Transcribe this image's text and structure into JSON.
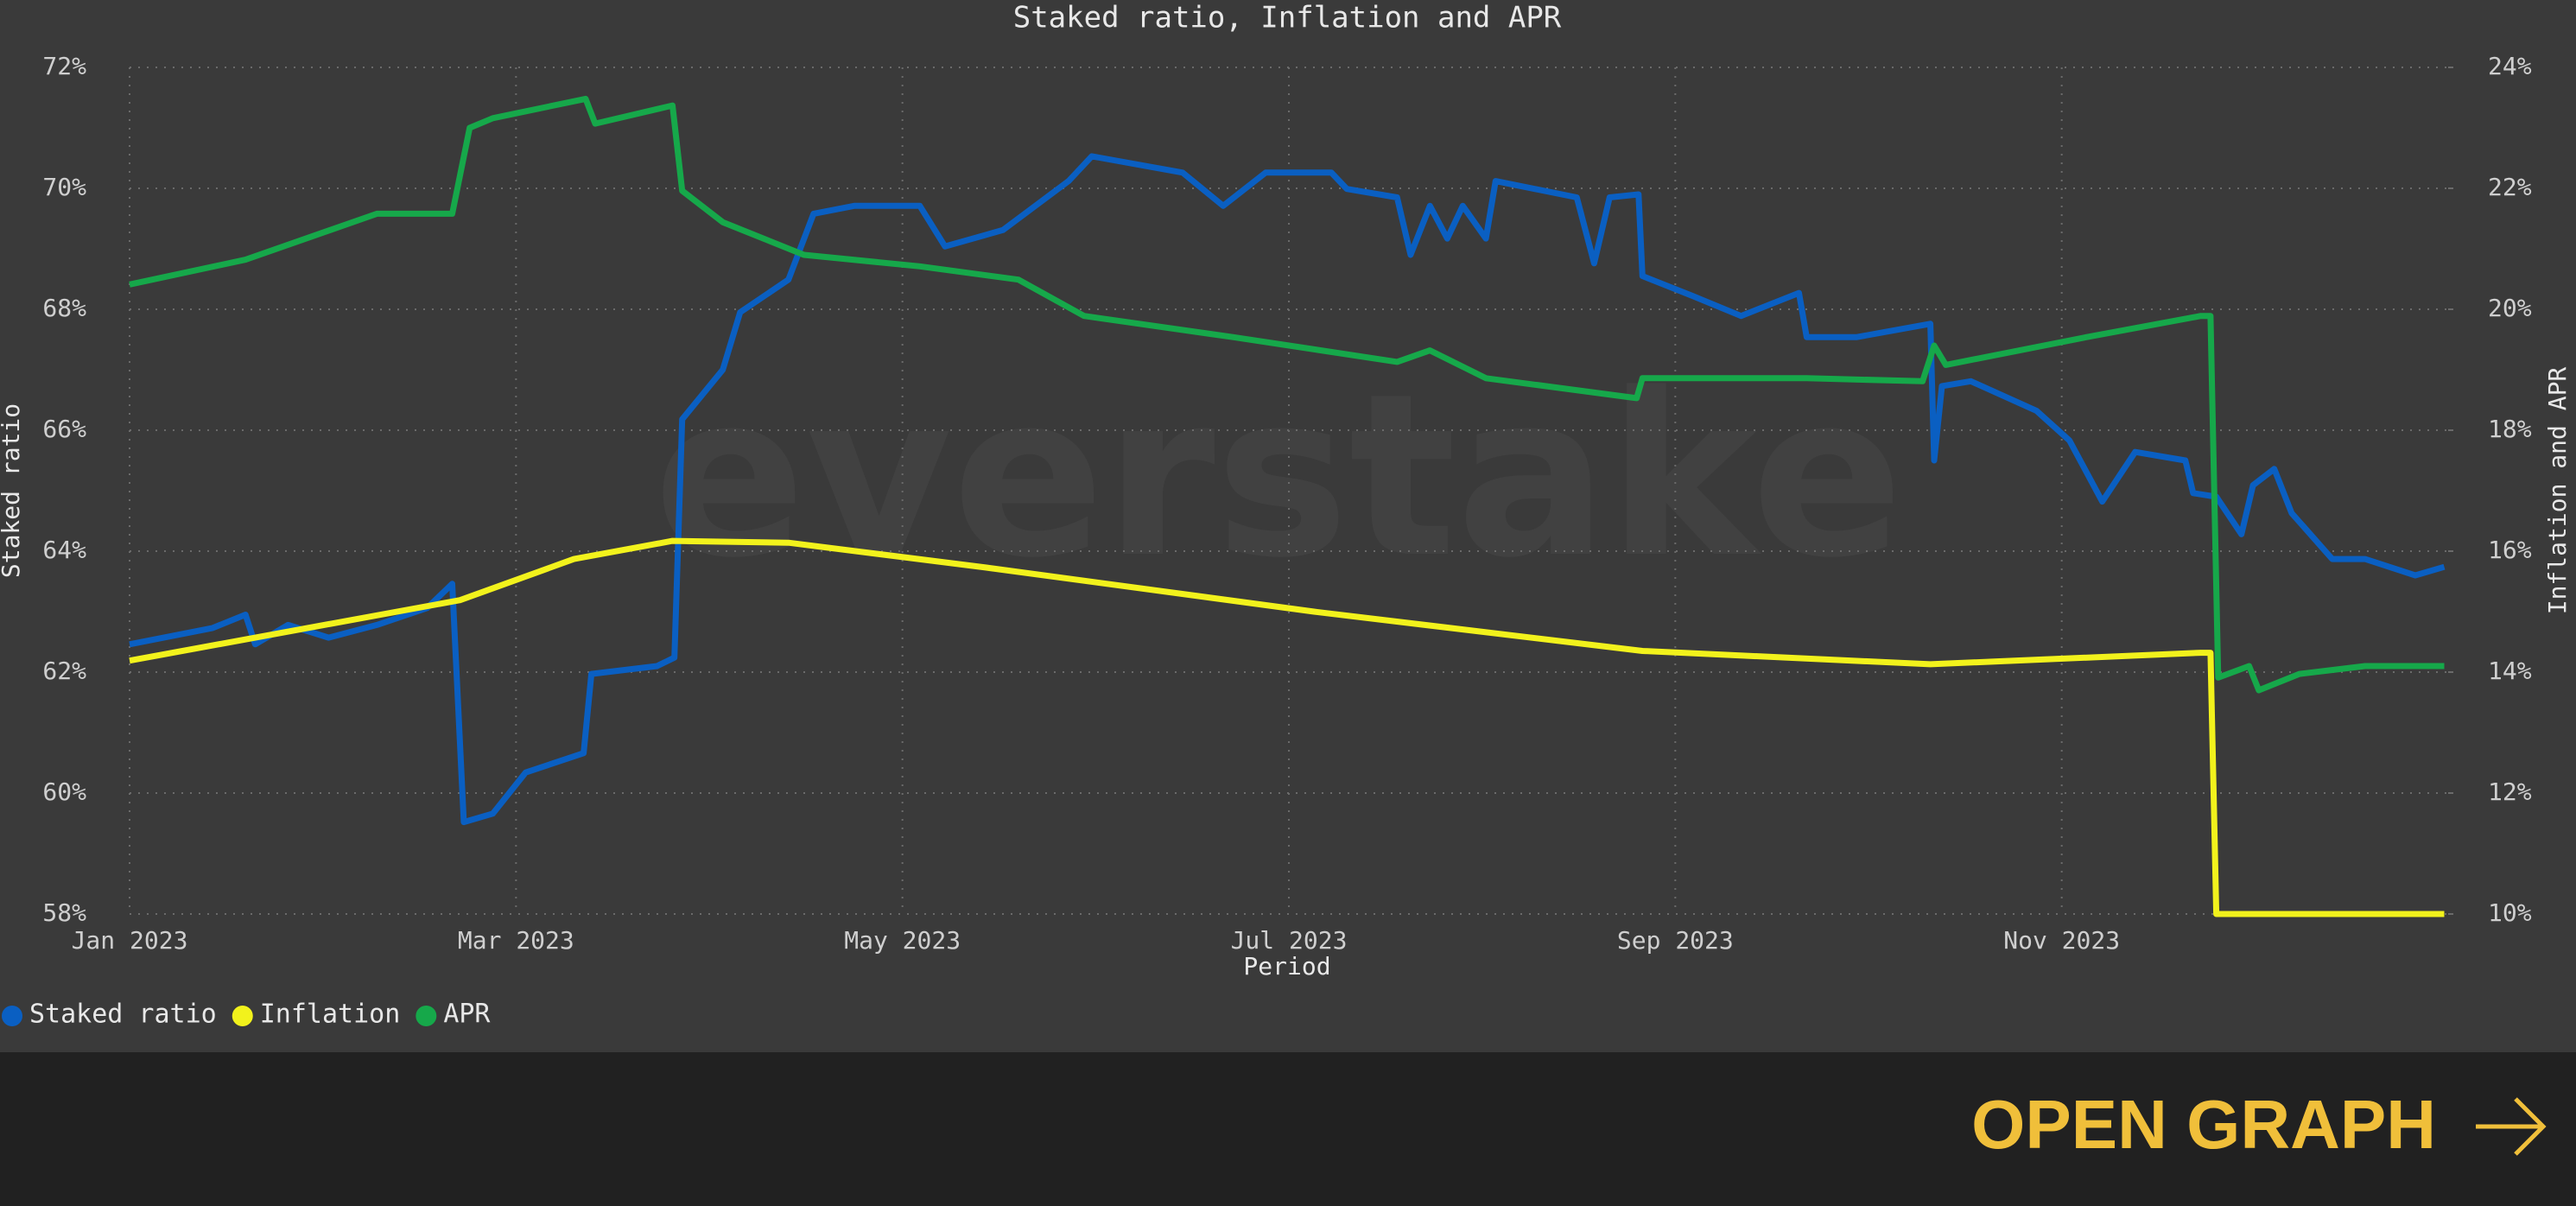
{
  "chart_data": {
    "type": "line",
    "title": "Staked ratio, Inflation and APR",
    "x_label": "Period",
    "y_label": "Staked ratio",
    "y2_label": "Inflation and APR",
    "watermark": "everstake",
    "grid": true,
    "legend": "bottom-left",
    "xlim": [
      0,
      12
    ],
    "xticks": [
      {
        "value": 0,
        "label": "Jan 2023"
      },
      {
        "value": 2,
        "label": "Mar 2023"
      },
      {
        "value": 4,
        "label": "May 2023"
      },
      {
        "value": 6,
        "label": "Jul 2023"
      },
      {
        "value": 8,
        "label": "Sep 2023"
      },
      {
        "value": 10,
        "label": "Nov 2023"
      }
    ],
    "ylim": [
      58,
      72
    ],
    "yticks": [
      {
        "value": 58,
        "label": "58%"
      },
      {
        "value": 60,
        "label": "60%"
      },
      {
        "value": 62,
        "label": "62%"
      },
      {
        "value": 64,
        "label": "64%"
      },
      {
        "value": 66,
        "label": "66%"
      },
      {
        "value": 68,
        "label": "68%"
      },
      {
        "value": 70,
        "label": "70%"
      },
      {
        "value": 72,
        "label": "72%"
      }
    ],
    "y2lim": [
      10,
      24
    ],
    "y2ticks": [
      {
        "value": 10,
        "label": "10%"
      },
      {
        "value": 12,
        "label": "12%"
      },
      {
        "value": 14,
        "label": "14%"
      },
      {
        "value": 16,
        "label": "16%"
      },
      {
        "value": 18,
        "label": "18%"
      },
      {
        "value": 20,
        "label": "20%"
      },
      {
        "value": 22,
        "label": "22%"
      },
      {
        "value": 24,
        "label": "24%"
      }
    ],
    "series": [
      {
        "name": "Staked ratio",
        "color": "#0a5fc2",
        "axis": "y",
        "x": [
          0,
          0.43,
          0.6,
          0.65,
          0.82,
          1.03,
          1.28,
          1.54,
          1.67,
          1.73,
          1.88,
          2.05,
          2.35,
          2.39,
          2.73,
          2.82,
          2.86,
          3.07,
          3.16,
          3.41,
          3.54,
          3.75,
          4.09,
          4.22,
          4.52,
          4.86,
          4.98,
          5.45,
          5.66,
          5.88,
          6.22,
          6.3,
          6.56,
          6.63,
          6.73,
          6.82,
          6.9,
          7.02,
          7.07,
          7.49,
          7.58,
          7.66,
          7.81,
          7.83,
          8.09,
          8.34,
          8.64,
          8.68,
          8.94,
          9.32,
          9.34,
          9.38,
          9.53,
          9.87,
          10.04,
          10.21,
          10.38,
          10.64,
          10.68,
          10.8,
          10.93,
          10.99,
          11.1,
          11.19,
          11.4,
          11.57,
          11.83,
          11.98
        ],
        "values": [
          62.46,
          62.73,
          62.95,
          62.46,
          62.78,
          62.57,
          62.78,
          63.06,
          63.46,
          59.52,
          59.66,
          60.34,
          60.66,
          61.97,
          62.1,
          62.24,
          66.18,
          67.0,
          67.95,
          68.49,
          69.58,
          69.71,
          69.71,
          69.04,
          69.31,
          70.12,
          70.53,
          70.26,
          69.71,
          70.26,
          70.26,
          69.99,
          69.85,
          68.9,
          69.71,
          69.17,
          69.71,
          69.17,
          70.12,
          69.85,
          68.76,
          69.85,
          69.9,
          68.55,
          68.22,
          67.89,
          68.27,
          67.54,
          67.54,
          67.76,
          65.5,
          66.73,
          66.81,
          66.32,
          65.83,
          64.82,
          65.64,
          65.5,
          64.96,
          64.9,
          64.28,
          65.09,
          65.36,
          64.63,
          63.87,
          63.87,
          63.6,
          63.74
        ]
      },
      {
        "name": "Inflation",
        "color": "#f2f21c",
        "axis": "y2",
        "x": [
          0,
          1.71,
          2.3,
          2.81,
          3.41,
          4.43,
          6.13,
          7.83,
          9.32,
          10.72,
          10.77,
          10.8,
          11.98
        ],
        "values": [
          14.19,
          15.19,
          15.87,
          16.17,
          16.14,
          15.73,
          15.0,
          14.35,
          14.13,
          14.32,
          14.32,
          10,
          10
        ]
      },
      {
        "name": "APR",
        "color": "#16a84a",
        "axis": "y2",
        "x": [
          0,
          0.6,
          1.28,
          1.67,
          1.76,
          1.88,
          2.36,
          2.41,
          2.81,
          2.86,
          3.07,
          3.49,
          4.09,
          4.6,
          4.94,
          5.71,
          6.56,
          6.73,
          7.02,
          7.8,
          7.83,
          8.68,
          9.28,
          9.34,
          9.4,
          10.13,
          10.72,
          10.77,
          10.81,
          10.97,
          11.02,
          11.23,
          11.57,
          11.98
        ],
        "values": [
          20.41,
          20.82,
          21.58,
          21.58,
          23.0,
          23.16,
          23.48,
          23.07,
          23.37,
          21.96,
          21.44,
          20.9,
          20.71,
          20.49,
          19.89,
          19.54,
          19.13,
          19.32,
          18.86,
          18.53,
          18.86,
          18.86,
          18.81,
          19.4,
          19.08,
          19.54,
          19.89,
          19.89,
          13.91,
          14.1,
          13.7,
          13.97,
          14.1,
          14.1
        ]
      }
    ]
  },
  "footer": {
    "button": "OPEN GRAPH"
  }
}
